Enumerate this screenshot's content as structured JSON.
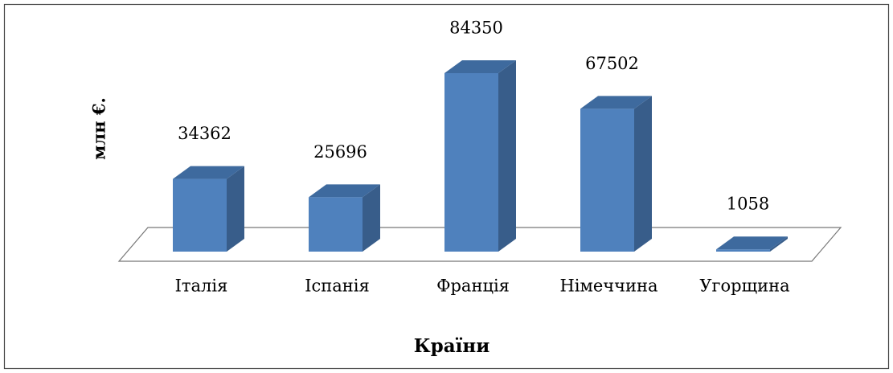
{
  "chart_data": {
    "type": "bar3d",
    "y_label": "млн €.",
    "x_label": "Країни",
    "categories": [
      "Італія",
      "Іспанія",
      "Франція",
      "Німеччина",
      "Угорщина"
    ],
    "values": [
      34362,
      25696,
      84350,
      67502,
      1058
    ],
    "color": "#4f81bd"
  }
}
